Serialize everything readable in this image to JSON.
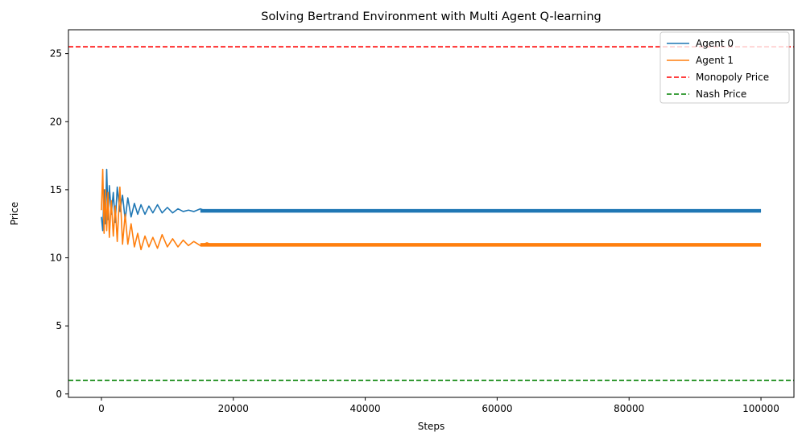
{
  "chart_data": {
    "type": "line",
    "title": "Solving Bertrand Environment with Multi Agent Q-learning",
    "xlabel": "Steps",
    "ylabel": "Price",
    "xlim": [
      -5000,
      105000
    ],
    "ylim": [
      -0.25,
      26.75
    ],
    "xticks": [
      0,
      20000,
      40000,
      60000,
      80000,
      100000
    ],
    "xtick_labels": [
      "0",
      "20000",
      "40000",
      "60000",
      "80000",
      "100000"
    ],
    "yticks": [
      0,
      5,
      10,
      15,
      20,
      25
    ],
    "ytick_labels": [
      "0",
      "5",
      "10",
      "15",
      "20",
      "25"
    ],
    "grid": false,
    "legend_position": "top-right",
    "series": [
      {
        "name": "Agent 0",
        "color": "#1f77b4",
        "style": "solid",
        "x": [
          0,
          200,
          400,
          600,
          800,
          1000,
          1200,
          1500,
          1800,
          2100,
          2400,
          2800,
          3200,
          3600,
          4000,
          4500,
          5000,
          5500,
          6000,
          6600,
          7200,
          7800,
          8500,
          9200,
          10000,
          10800,
          11600,
          12400,
          13200,
          14000,
          15000,
          16000,
          17000,
          18500,
          20000,
          40000,
          60000,
          80000,
          100000
        ],
        "y": [
          13.0,
          12.0,
          15.0,
          12.5,
          16.5,
          12.8,
          15.3,
          13.2,
          14.8,
          12.6,
          15.2,
          13.4,
          14.6,
          12.8,
          14.4,
          13.0,
          14.0,
          13.2,
          13.9,
          13.2,
          13.8,
          13.3,
          13.9,
          13.3,
          13.7,
          13.3,
          13.6,
          13.4,
          13.5,
          13.4,
          13.6,
          13.4,
          13.5,
          13.4,
          13.45,
          13.45,
          13.45,
          13.45,
          13.45
        ]
      },
      {
        "name": "Agent 1",
        "color": "#ff7f0e",
        "style": "solid",
        "x": [
          0,
          200,
          400,
          600,
          800,
          1000,
          1200,
          1500,
          1800,
          2100,
          2400,
          2800,
          3200,
          3600,
          4000,
          4500,
          5000,
          5500,
          6000,
          6600,
          7200,
          7800,
          8500,
          9200,
          10000,
          10800,
          11600,
          12400,
          13200,
          14000,
          15000,
          16000,
          17000,
          18500,
          20000,
          40000,
          60000,
          80000,
          100000
        ],
        "y": [
          13.5,
          16.5,
          11.8,
          15.0,
          12.0,
          14.8,
          11.5,
          14.2,
          11.6,
          13.8,
          11.2,
          15.2,
          11.0,
          13.2,
          11.0,
          12.5,
          10.8,
          11.8,
          10.6,
          11.6,
          10.8,
          11.5,
          10.7,
          11.7,
          10.8,
          11.4,
          10.8,
          11.3,
          10.9,
          11.2,
          10.9,
          11.1,
          10.9,
          10.95,
          10.95,
          10.95,
          10.95,
          10.95,
          10.95
        ]
      },
      {
        "name": "Monopoly Price",
        "color": "#ff0000",
        "style": "dashed",
        "hline": 25.5
      },
      {
        "name": "Nash Price",
        "color": "#008000",
        "style": "dashed",
        "hline": 1.0
      }
    ]
  }
}
